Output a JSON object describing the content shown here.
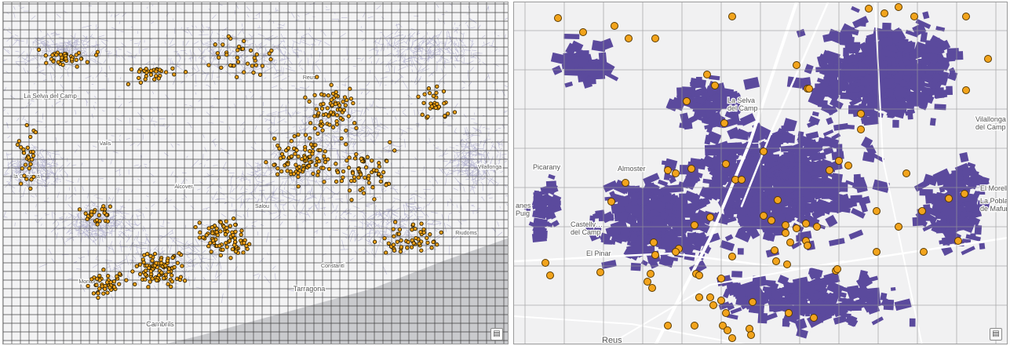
{
  "left_map": {
    "labels": [
      "La Selva del Camp",
      "Tarragona",
      "Cambrils",
      "Reus",
      "Valls",
      "Alcover",
      "Vilallonga",
      "Constantí",
      "Montbrió",
      "Riudoms",
      "la Canonja",
      "Salou"
    ],
    "colors": {
      "sea": "#c9cacd",
      "land": "#f3f3f4",
      "roads": "#8b89b8",
      "grid": "#2b2b2b",
      "point_fill": "#f3a21a",
      "point_stroke": "#2a1f00"
    },
    "legend_icon": "layers-list-icon"
  },
  "right_map": {
    "labels": {
      "selva": "La Selva\ndel Camp",
      "vilallonga": "Vilallonga\ndel Camp",
      "picarany": "Picarany",
      "almoster": "Almoster",
      "morell": "El Morell",
      "pobla": "La Pobla\nde Mafumet",
      "castellvell": "Castellv…\ndel Camp",
      "pinar": "El Pinar",
      "reus": "Reus",
      "puig": "Puig",
      "anes": "anes"
    },
    "colors": {
      "parcels": "#5b4a9d",
      "land": "#f1f1f2",
      "roads": "#ffffff",
      "grid": "#9a9a9a",
      "point_fill": "#f2a41c",
      "point_stroke": "#5a3a00"
    },
    "legend_icon": "layers-list-icon"
  }
}
